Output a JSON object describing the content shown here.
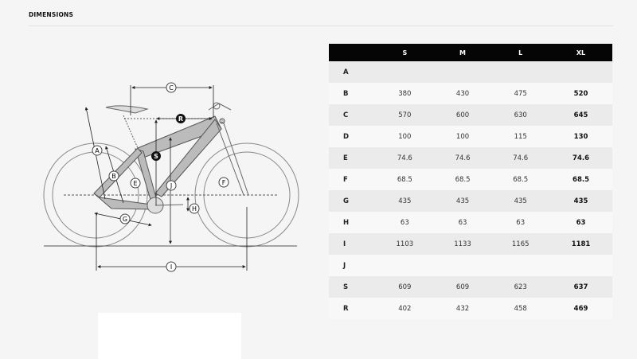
{
  "title": "DIMENSIONS",
  "table": {
    "columns": [
      "",
      "S",
      "M",
      "L",
      "XL"
    ],
    "rows": [
      {
        "label": "A",
        "values": [
          "",
          "",
          "",
          ""
        ]
      },
      {
        "label": "B",
        "values": [
          "380",
          "430",
          "475",
          "520"
        ]
      },
      {
        "label": "C",
        "values": [
          "570",
          "600",
          "630",
          "645"
        ]
      },
      {
        "label": "D",
        "values": [
          "100",
          "100",
          "115",
          "130"
        ]
      },
      {
        "label": "E",
        "values": [
          "74.6",
          "74.6",
          "74.6",
          "74.6"
        ]
      },
      {
        "label": "F",
        "values": [
          "68.5",
          "68.5",
          "68.5",
          "68.5"
        ]
      },
      {
        "label": "G",
        "values": [
          "435",
          "435",
          "435",
          "435"
        ]
      },
      {
        "label": "H",
        "values": [
          "63",
          "63",
          "63",
          "63"
        ]
      },
      {
        "label": "I",
        "values": [
          "1103",
          "1133",
          "1165",
          "1181"
        ]
      },
      {
        "label": "J",
        "values": [
          "",
          "",
          "",
          ""
        ]
      },
      {
        "label": "S",
        "values": [
          "609",
          "609",
          "623",
          "637"
        ]
      },
      {
        "label": "R",
        "values": [
          "402",
          "432",
          "458",
          "469"
        ]
      }
    ]
  },
  "diagram": {
    "labels": {
      "A": "A",
      "B": "B",
      "C": "C",
      "D": "D",
      "E": "E",
      "F": "F",
      "G": "G",
      "H": "H",
      "I": "I",
      "J": "J",
      "S": "S",
      "R": "R"
    }
  }
}
